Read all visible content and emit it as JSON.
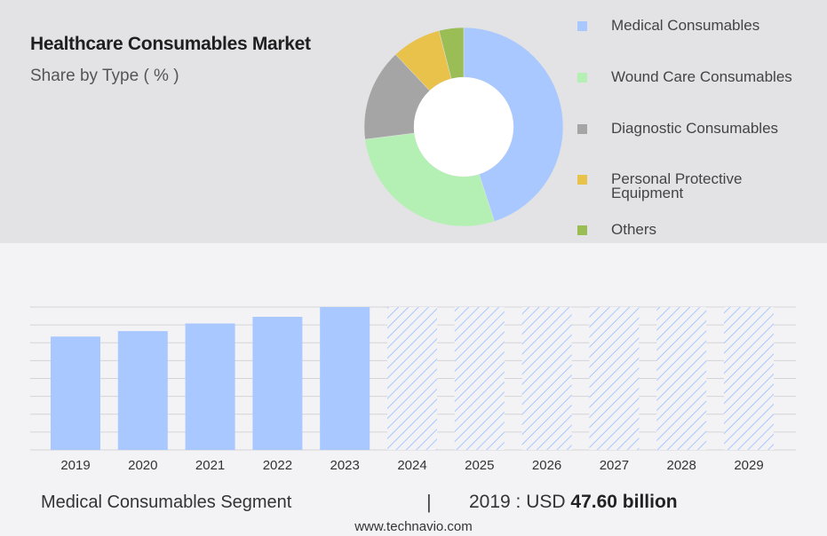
{
  "title": "Healthcare Consumables Market",
  "subtitle": "Share by Type ( % )",
  "chart_data": [
    {
      "type": "pie",
      "variant": "donut",
      "categories": [
        "Medical Consumables",
        "Wound Care Consumables",
        "Diagnostic Consumables",
        "Personal Protective Equipment",
        "Others"
      ],
      "values": [
        45,
        28,
        15,
        8,
        4
      ],
      "colors": [
        "#a8c8ff",
        "#b4f0b4",
        "#a5a5a5",
        "#e8c24a",
        "#9bbd55"
      ],
      "legend_position": "right"
    },
    {
      "type": "bar",
      "categories": [
        "2019",
        "2020",
        "2021",
        "2022",
        "2023",
        "2024",
        "2025",
        "2026",
        "2027",
        "2028",
        "2029"
      ],
      "values": [
        47.6,
        49.9,
        53.1,
        55.9,
        60.0,
        60.0,
        60.0,
        60.0,
        60.0,
        60.0,
        60.0
      ],
      "forecast_from": "2024",
      "ylim": [
        0,
        60
      ],
      "grid": true,
      "bar_color": "#a8c8ff",
      "forecast_style": "hatched"
    }
  ],
  "summary": {
    "segment_label": "Medical Consumables Segment",
    "separator": "|",
    "value_prefix": "2019 : USD",
    "value": "47.60 billion"
  },
  "footer": "www.technavio.com"
}
